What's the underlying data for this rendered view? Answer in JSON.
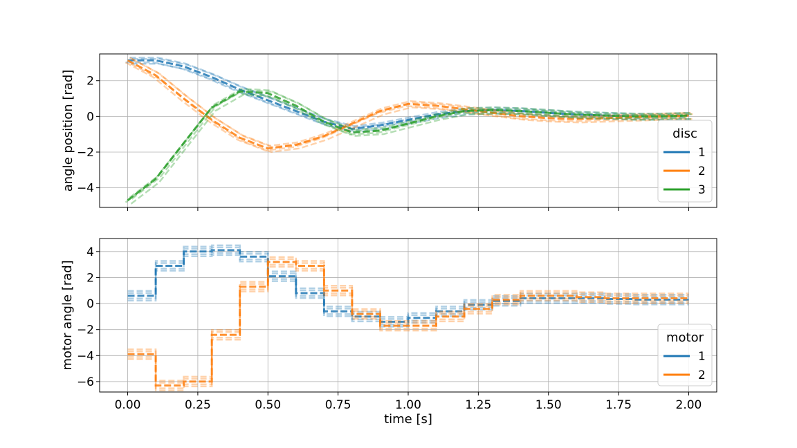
{
  "colors": {
    "c1": "#1f77b4",
    "c2": "#ff7f0e",
    "c3": "#2ca02c",
    "grid": "#b0b0b0"
  },
  "chart_data": [
    {
      "type": "line",
      "ylabel": "angle position [rad]",
      "xlabel": "",
      "xlim": [
        -0.1,
        2.1
      ],
      "ylim": [
        -5.1,
        3.5
      ],
      "xticks": [
        0.0,
        0.25,
        0.5,
        0.75,
        1.0,
        1.25,
        1.5,
        1.75,
        2.0
      ],
      "yticks": [
        -4,
        -2,
        0,
        2
      ],
      "ytick_labels": [
        "−4",
        "−2",
        "0",
        "2"
      ],
      "grid": true,
      "legend": {
        "title": "disc",
        "position": "lower-right",
        "entries": [
          "1",
          "2",
          "3"
        ]
      },
      "series": [
        {
          "name": "1",
          "color": "#1f77b4",
          "x": [
            0,
            0.1,
            0.2,
            0.3,
            0.4,
            0.5,
            0.6,
            0.7,
            0.8,
            0.9,
            1.0,
            1.1,
            1.2,
            1.3,
            1.4,
            1.5,
            1.6,
            1.7,
            1.8,
            1.9,
            2.0
          ],
          "y": [
            3.14,
            3.14,
            2.8,
            2.2,
            1.5,
            0.9,
            0.3,
            -0.3,
            -0.7,
            -0.5,
            -0.2,
            0.1,
            0.3,
            0.35,
            0.3,
            0.2,
            0.1,
            0.05,
            0.0,
            0.0,
            0.05
          ]
        },
        {
          "name": "2",
          "color": "#ff7f0e",
          "x": [
            0,
            0.1,
            0.2,
            0.3,
            0.4,
            0.5,
            0.6,
            0.7,
            0.8,
            0.9,
            1.0,
            1.1,
            1.2,
            1.3,
            1.4,
            1.5,
            1.6,
            1.7,
            1.8,
            1.9,
            2.0
          ],
          "y": [
            3.14,
            2.3,
            1.0,
            -0.2,
            -1.2,
            -1.8,
            -1.6,
            -1.1,
            -0.4,
            0.3,
            0.7,
            0.6,
            0.4,
            0.2,
            0.0,
            -0.1,
            -0.15,
            -0.1,
            -0.05,
            0.0,
            0.05
          ]
        },
        {
          "name": "3",
          "color": "#2ca02c",
          "x": [
            0,
            0.1,
            0.2,
            0.3,
            0.4,
            0.5,
            0.6,
            0.7,
            0.8,
            0.9,
            1.0,
            1.1,
            1.2,
            1.3,
            1.4,
            1.5,
            1.6,
            1.7,
            1.8,
            1.9,
            2.0
          ],
          "y": [
            -4.7,
            -3.5,
            -1.5,
            0.5,
            1.4,
            1.3,
            0.6,
            -0.3,
            -0.9,
            -0.8,
            -0.4,
            0.0,
            0.3,
            0.35,
            0.3,
            0.2,
            0.1,
            0.05,
            0.0,
            0.0,
            0.05
          ]
        }
      ]
    },
    {
      "type": "line",
      "step": true,
      "ylabel": "motor angle [rad]",
      "xlabel": "time [s]",
      "xlim": [
        -0.1,
        2.1
      ],
      "ylim": [
        -6.8,
        5.0
      ],
      "xticks": [
        0.0,
        0.25,
        0.5,
        0.75,
        1.0,
        1.25,
        1.5,
        1.75,
        2.0
      ],
      "xtick_labels": [
        "0.00",
        "0.25",
        "0.50",
        "0.75",
        "1.00",
        "1.25",
        "1.50",
        "1.75",
        "2.00"
      ],
      "yticks": [
        -6,
        -4,
        -2,
        0,
        2,
        4
      ],
      "ytick_labels": [
        "−6",
        "−4",
        "−2",
        "0",
        "2",
        "4"
      ],
      "grid": true,
      "legend": {
        "title": "motor",
        "position": "lower-right",
        "entries": [
          "1",
          "2"
        ]
      },
      "series": [
        {
          "name": "1",
          "color": "#1f77b4",
          "x": [
            0.0,
            0.1,
            0.2,
            0.3,
            0.4,
            0.5,
            0.6,
            0.7,
            0.8,
            0.9,
            1.0,
            1.1,
            1.2,
            1.3,
            1.4,
            1.5,
            1.6,
            1.7,
            1.8,
            1.9
          ],
          "y": [
            0.6,
            2.9,
            4.0,
            4.1,
            3.6,
            2.1,
            0.8,
            -0.6,
            -1.0,
            -1.4,
            -1.1,
            -0.6,
            -0.1,
            0.2,
            0.4,
            0.4,
            0.4,
            0.35,
            0.3,
            0.3
          ]
        },
        {
          "name": "2",
          "color": "#ff7f0e",
          "x": [
            0.0,
            0.1,
            0.2,
            0.3,
            0.4,
            0.5,
            0.6,
            0.7,
            0.8,
            0.9,
            1.0,
            1.1,
            1.2,
            1.3,
            1.4,
            1.5,
            1.6,
            1.7,
            1.8,
            1.9
          ],
          "y": [
            -3.9,
            -6.3,
            -6.0,
            -2.4,
            1.3,
            3.2,
            2.9,
            1.0,
            -0.8,
            -1.7,
            -1.7,
            -1.0,
            -0.4,
            0.3,
            0.6,
            0.6,
            0.5,
            0.4,
            0.4,
            0.4
          ]
        }
      ]
    }
  ]
}
